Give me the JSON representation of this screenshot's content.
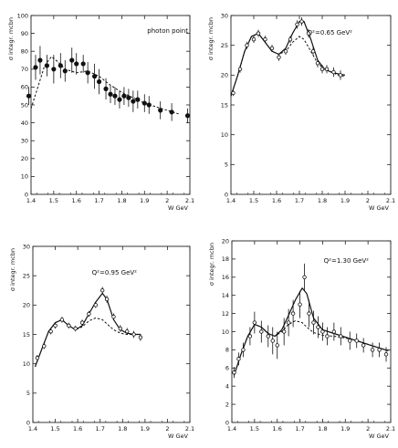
{
  "chart_data": [
    {
      "type": "scatter",
      "annotation": "photon point",
      "xlabel": "W GeV",
      "ylabel": "σ integr. mcbn",
      "xlim": [
        1.4,
        2.1
      ],
      "ylim": [
        0,
        100
      ],
      "xticks": [
        1.4,
        1.5,
        1.6,
        1.7,
        1.8,
        1.9,
        2,
        2.1
      ],
      "yticks": [
        0,
        10,
        20,
        30,
        40,
        50,
        60,
        70,
        80,
        90,
        100
      ],
      "tick_labels_x": [
        "1.4",
        "1.5",
        "1.6",
        "1.7",
        "1.8",
        "1.9",
        "2",
        "2.1"
      ],
      "tick_labels_y": [
        "0",
        "10",
        "20",
        "30",
        "40",
        "50",
        "60",
        "70",
        "80",
        "90",
        "100"
      ],
      "points": [
        {
          "x": 1.39,
          "y": 55,
          "err": 5,
          "marker": "filled"
        },
        {
          "x": 1.42,
          "y": 71,
          "err": 7,
          "marker": "filled"
        },
        {
          "x": 1.44,
          "y": 75,
          "err": 8,
          "marker": "filled"
        },
        {
          "x": 1.47,
          "y": 72,
          "err": 6,
          "marker": "filled"
        },
        {
          "x": 1.5,
          "y": 70,
          "err": 8,
          "marker": "filled"
        },
        {
          "x": 1.53,
          "y": 72,
          "err": 7,
          "marker": "filled"
        },
        {
          "x": 1.55,
          "y": 69,
          "err": 6,
          "marker": "filled"
        },
        {
          "x": 1.58,
          "y": 75,
          "err": 7,
          "marker": "filled"
        },
        {
          "x": 1.6,
          "y": 73,
          "err": 6,
          "marker": "filled"
        },
        {
          "x": 1.63,
          "y": 73,
          "err": 5,
          "marker": "filled"
        },
        {
          "x": 1.65,
          "y": 68,
          "err": 6,
          "marker": "filled"
        },
        {
          "x": 1.68,
          "y": 66,
          "err": 7,
          "marker": "filled"
        },
        {
          "x": 1.7,
          "y": 63,
          "err": 7,
          "marker": "filled"
        },
        {
          "x": 1.73,
          "y": 59,
          "err": 6,
          "marker": "filled"
        },
        {
          "x": 1.75,
          "y": 56,
          "err": 5,
          "marker": "filled"
        },
        {
          "x": 1.77,
          "y": 55,
          "err": 5,
          "marker": "filled"
        },
        {
          "x": 1.79,
          "y": 53,
          "err": 5,
          "marker": "filled"
        },
        {
          "x": 1.81,
          "y": 55,
          "err": 5,
          "marker": "filled"
        },
        {
          "x": 1.83,
          "y": 54,
          "err": 5,
          "marker": "filled"
        },
        {
          "x": 1.85,
          "y": 52,
          "err": 6,
          "marker": "filled"
        },
        {
          "x": 1.87,
          "y": 53,
          "err": 5,
          "marker": "filled"
        },
        {
          "x": 1.9,
          "y": 51,
          "err": 5,
          "marker": "filled"
        },
        {
          "x": 1.92,
          "y": 50,
          "err": 5,
          "marker": "filled"
        },
        {
          "x": 1.97,
          "y": 47,
          "err": 5,
          "marker": "filled"
        },
        {
          "x": 2.02,
          "y": 46,
          "err": 5,
          "marker": "filled"
        },
        {
          "x": 2.09,
          "y": 44,
          "err": 4,
          "marker": "filled"
        }
      ],
      "curves": [
        {
          "style": "dashed",
          "x": [
            1.4,
            1.43,
            1.46,
            1.49,
            1.52,
            1.55,
            1.6,
            1.65,
            1.7,
            1.75,
            1.8,
            1.85,
            1.9,
            1.95,
            2.0,
            2.05
          ],
          "y": [
            48,
            60,
            72,
            77,
            74,
            70,
            68,
            69,
            66,
            61,
            57,
            54,
            51,
            49,
            47,
            45
          ]
        }
      ]
    },
    {
      "type": "scatter",
      "annotation": "Q²=0.65 GeV²",
      "xlabel": "W GeV",
      "ylabel": "σ integr. mcbn",
      "xlim": [
        1.4,
        2.1
      ],
      "ylim": [
        0,
        30
      ],
      "xticks": [
        1.4,
        1.5,
        1.6,
        1.7,
        1.8,
        1.9,
        2,
        2.1
      ],
      "yticks": [
        0,
        5,
        10,
        15,
        20,
        25,
        30
      ],
      "tick_labels_x": [
        "1.4",
        "1.5",
        "1.6",
        "1.7",
        "1.8",
        "1.9",
        "2",
        "2.1"
      ],
      "tick_labels_y": [
        "0",
        "5",
        "10",
        "15",
        "20",
        "25",
        "30"
      ],
      "points": [
        {
          "x": 1.41,
          "y": 17,
          "err": 0.5,
          "marker": "open"
        },
        {
          "x": 1.44,
          "y": 21,
          "err": 0.6,
          "marker": "open"
        },
        {
          "x": 1.47,
          "y": 25,
          "err": 0.6,
          "marker": "open"
        },
        {
          "x": 1.5,
          "y": 26,
          "err": 0.6,
          "marker": "open"
        },
        {
          "x": 1.52,
          "y": 27,
          "err": 0.6,
          "marker": "open"
        },
        {
          "x": 1.55,
          "y": 26,
          "err": 0.6,
          "marker": "open"
        },
        {
          "x": 1.58,
          "y": 24.5,
          "err": 0.6,
          "marker": "open"
        },
        {
          "x": 1.61,
          "y": 23,
          "err": 0.6,
          "marker": "open"
        },
        {
          "x": 1.64,
          "y": 24,
          "err": 0.6,
          "marker": "open"
        },
        {
          "x": 1.66,
          "y": 26,
          "err": 0.6,
          "marker": "open"
        },
        {
          "x": 1.69,
          "y": 28.5,
          "err": 0.7,
          "marker": "open"
        },
        {
          "x": 1.71,
          "y": 29,
          "err": 0.7,
          "marker": "open"
        },
        {
          "x": 1.74,
          "y": 27,
          "err": 0.7,
          "marker": "open"
        },
        {
          "x": 1.76,
          "y": 24,
          "err": 0.7,
          "marker": "open"
        },
        {
          "x": 1.78,
          "y": 22,
          "err": 0.7,
          "marker": "open"
        },
        {
          "x": 1.8,
          "y": 21,
          "err": 0.7,
          "marker": "open"
        },
        {
          "x": 1.82,
          "y": 21,
          "err": 0.7,
          "marker": "open"
        },
        {
          "x": 1.85,
          "y": 20.5,
          "err": 0.8,
          "marker": "open"
        },
        {
          "x": 1.88,
          "y": 20,
          "err": 0.8,
          "marker": "open"
        }
      ],
      "curves": [
        {
          "style": "solid",
          "x": [
            1.4,
            1.43,
            1.46,
            1.49,
            1.52,
            1.55,
            1.58,
            1.61,
            1.64,
            1.67,
            1.7,
            1.72,
            1.75,
            1.78,
            1.81,
            1.84,
            1.87,
            1.9
          ],
          "y": [
            16.5,
            20,
            24,
            26.5,
            27,
            25.5,
            24,
            23.5,
            24.5,
            27,
            29,
            29,
            26,
            22.5,
            21,
            20.5,
            20.2,
            20
          ]
        },
        {
          "style": "dashed",
          "x": [
            1.4,
            1.43,
            1.46,
            1.49,
            1.52,
            1.55,
            1.58,
            1.61,
            1.64,
            1.67,
            1.7,
            1.72,
            1.75,
            1.78,
            1.81,
            1.84,
            1.87,
            1.9
          ],
          "y": [
            16.5,
            20,
            24,
            26.5,
            27,
            25.5,
            24,
            23.5,
            24,
            25.5,
            26.5,
            26,
            24,
            22,
            21,
            20.5,
            20,
            19.8
          ]
        }
      ]
    },
    {
      "type": "scatter",
      "annotation": "Q²=0.95 GeV²",
      "xlabel": "W GeV",
      "ylabel": "σ integr. mcbn",
      "xlim": [
        1.4,
        2.1
      ],
      "ylim": [
        0,
        30
      ],
      "xticks": [
        1.4,
        1.5,
        1.6,
        1.7,
        1.8,
        1.9,
        2,
        2.1
      ],
      "yticks": [
        0,
        5,
        10,
        15,
        20,
        25,
        30
      ],
      "tick_labels_x": [
        "1.4",
        "1.5",
        "1.6",
        "1.7",
        "1.8",
        "1.9",
        "2",
        "2.1"
      ],
      "tick_labels_y": [
        "0",
        "5",
        "10",
        "15",
        "20",
        "25",
        "30"
      ],
      "points": [
        {
          "x": 1.42,
          "y": 11,
          "err": 0.5,
          "marker": "open"
        },
        {
          "x": 1.45,
          "y": 13,
          "err": 0.5,
          "marker": "open"
        },
        {
          "x": 1.48,
          "y": 15.5,
          "err": 0.5,
          "marker": "open"
        },
        {
          "x": 1.5,
          "y": 16.5,
          "err": 0.5,
          "marker": "open"
        },
        {
          "x": 1.53,
          "y": 17.5,
          "err": 0.5,
          "marker": "open"
        },
        {
          "x": 1.56,
          "y": 16.5,
          "err": 0.5,
          "marker": "open"
        },
        {
          "x": 1.59,
          "y": 16,
          "err": 0.5,
          "marker": "open"
        },
        {
          "x": 1.62,
          "y": 17,
          "err": 0.5,
          "marker": "open"
        },
        {
          "x": 1.65,
          "y": 18.5,
          "err": 0.5,
          "marker": "open"
        },
        {
          "x": 1.68,
          "y": 20,
          "err": 0.5,
          "marker": "open"
        },
        {
          "x": 1.71,
          "y": 22.5,
          "err": 0.6,
          "marker": "open"
        },
        {
          "x": 1.73,
          "y": 21,
          "err": 0.6,
          "marker": "open"
        },
        {
          "x": 1.76,
          "y": 18,
          "err": 0.6,
          "marker": "open"
        },
        {
          "x": 1.79,
          "y": 16,
          "err": 0.6,
          "marker": "open"
        },
        {
          "x": 1.82,
          "y": 15.5,
          "err": 0.6,
          "marker": "open"
        },
        {
          "x": 1.85,
          "y": 15,
          "err": 0.6,
          "marker": "open"
        },
        {
          "x": 1.88,
          "y": 14.5,
          "err": 0.6,
          "marker": "open"
        }
      ],
      "curves": [
        {
          "style": "solid",
          "x": [
            1.41,
            1.44,
            1.47,
            1.5,
            1.53,
            1.56,
            1.59,
            1.62,
            1.65,
            1.68,
            1.71,
            1.73,
            1.76,
            1.79,
            1.82,
            1.85,
            1.88
          ],
          "y": [
            9.5,
            12.5,
            15.5,
            17,
            17.5,
            16.5,
            15.8,
            16.5,
            18.5,
            20.5,
            22,
            21,
            17.5,
            15.8,
            15.2,
            15,
            15
          ]
        },
        {
          "style": "dashed",
          "x": [
            1.41,
            1.44,
            1.47,
            1.5,
            1.53,
            1.56,
            1.59,
            1.62,
            1.65,
            1.68,
            1.71,
            1.73,
            1.76,
            1.79,
            1.82,
            1.85,
            1.88
          ],
          "y": [
            9.5,
            12.5,
            15.5,
            17,
            17.5,
            16.5,
            15.8,
            16.3,
            17.3,
            17.8,
            17.5,
            16.8,
            15.8,
            15.2,
            15,
            15,
            15
          ]
        }
      ]
    },
    {
      "type": "scatter",
      "annotation": "Q²=1.30 GeV²",
      "xlabel": "W GeV",
      "ylabel": "σ integr. mcbn",
      "xlim": [
        1.4,
        2.1
      ],
      "ylim": [
        0,
        20
      ],
      "xticks": [
        1.4,
        1.5,
        1.6,
        1.7,
        1.8,
        1.9,
        2,
        2.1
      ],
      "yticks": [
        0,
        2,
        4,
        6,
        8,
        10,
        12,
        14,
        16,
        18,
        20
      ],
      "tick_labels_x": [
        "1.4",
        "1.5",
        "1.6",
        "1.7",
        "1.8",
        "1.9",
        "2",
        "2.1"
      ],
      "tick_labels_y": [
        "0",
        "2",
        "4",
        "6",
        "8",
        "10",
        "12",
        "14",
        "16",
        "18",
        "20"
      ],
      "points": [
        {
          "x": 1.41,
          "y": 5.5,
          "err": 0.6,
          "marker": "open"
        },
        {
          "x": 1.43,
          "y": 7,
          "err": 0.7,
          "marker": "open"
        },
        {
          "x": 1.45,
          "y": 8,
          "err": 0.8,
          "marker": "open"
        },
        {
          "x": 1.48,
          "y": 9.5,
          "err": 1.0,
          "marker": "open"
        },
        {
          "x": 1.5,
          "y": 11,
          "err": 1.2,
          "marker": "open"
        },
        {
          "x": 1.53,
          "y": 10,
          "err": 1.2,
          "marker": "open"
        },
        {
          "x": 1.56,
          "y": 9.5,
          "err": 1.2,
          "marker": "open"
        },
        {
          "x": 1.58,
          "y": 9,
          "err": 1.5,
          "marker": "open"
        },
        {
          "x": 1.6,
          "y": 8.5,
          "err": 1.5,
          "marker": "open"
        },
        {
          "x": 1.63,
          "y": 10,
          "err": 1.5,
          "marker": "open"
        },
        {
          "x": 1.65,
          "y": 11,
          "err": 1.5,
          "marker": "open"
        },
        {
          "x": 1.67,
          "y": 12,
          "err": 1.5,
          "marker": "open"
        },
        {
          "x": 1.7,
          "y": 13,
          "err": 1.5,
          "marker": "open"
        },
        {
          "x": 1.72,
          "y": 16,
          "err": 1.5,
          "marker": "open"
        },
        {
          "x": 1.74,
          "y": 12,
          "err": 1.5,
          "marker": "open"
        },
        {
          "x": 1.76,
          "y": 11,
          "err": 1.3,
          "marker": "open"
        },
        {
          "x": 1.78,
          "y": 10.5,
          "err": 1.2,
          "marker": "open"
        },
        {
          "x": 1.8,
          "y": 10,
          "err": 1.0,
          "marker": "open"
        },
        {
          "x": 1.82,
          "y": 9.5,
          "err": 1.0,
          "marker": "open"
        },
        {
          "x": 1.85,
          "y": 10,
          "err": 1.0,
          "marker": "open"
        },
        {
          "x": 1.88,
          "y": 9.5,
          "err": 1.0,
          "marker": "open"
        },
        {
          "x": 1.92,
          "y": 9,
          "err": 1.0,
          "marker": "open"
        },
        {
          "x": 1.95,
          "y": 9,
          "err": 0.8,
          "marker": "open"
        },
        {
          "x": 1.98,
          "y": 8.5,
          "err": 0.8,
          "marker": "open"
        },
        {
          "x": 2.02,
          "y": 8,
          "err": 0.8,
          "marker": "open"
        },
        {
          "x": 2.05,
          "y": 8,
          "err": 0.8,
          "marker": "open"
        },
        {
          "x": 2.08,
          "y": 7.5,
          "err": 0.8,
          "marker": "open"
        }
      ],
      "curves": [
        {
          "style": "solid",
          "x": [
            1.41,
            1.44,
            1.47,
            1.5,
            1.53,
            1.56,
            1.59,
            1.62,
            1.65,
            1.68,
            1.71,
            1.73,
            1.76,
            1.8,
            1.85,
            1.9,
            1.95,
            2.0,
            2.05,
            2.09
          ],
          "y": [
            5.2,
            7.5,
            9.5,
            10.8,
            10.5,
            9.8,
            9.5,
            10.2,
            11.8,
            13.5,
            14.8,
            14.2,
            11.5,
            10.2,
            9.8,
            9.4,
            9.0,
            8.6,
            8.2,
            7.9
          ]
        },
        {
          "style": "dashed",
          "x": [
            1.41,
            1.44,
            1.47,
            1.5,
            1.53,
            1.56,
            1.59,
            1.62,
            1.65,
            1.68,
            1.71,
            1.73,
            1.76,
            1.8,
            1.85,
            1.9,
            1.95,
            2.0,
            2.05,
            2.09
          ],
          "y": [
            5.2,
            7.5,
            9.5,
            10.8,
            10.5,
            9.8,
            9.5,
            10.0,
            10.8,
            11.2,
            11.0,
            10.5,
            9.9,
            9.6,
            9.5,
            9.3,
            9.0,
            8.6,
            8.2,
            7.9
          ]
        }
      ]
    }
  ]
}
